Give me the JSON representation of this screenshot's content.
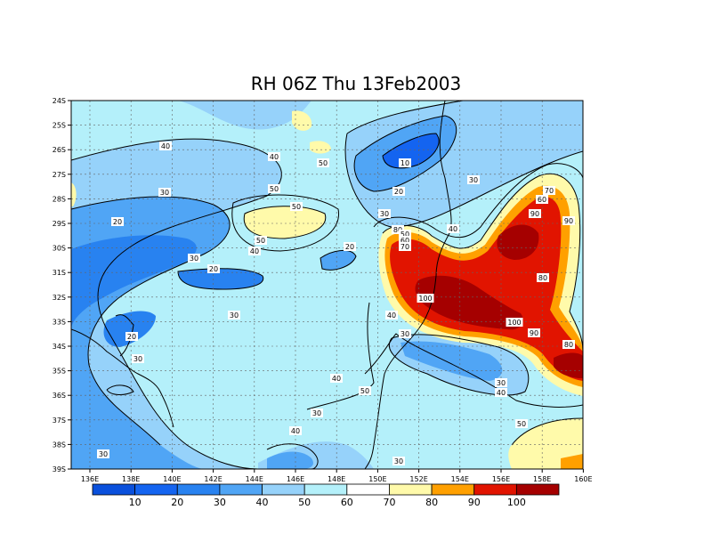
{
  "title": "RH 06Z Thu 13Feb2003",
  "map": {
    "lat_labels": [
      "24S",
      "25S",
      "26S",
      "27S",
      "28S",
      "29S",
      "30S",
      "31S",
      "32S",
      "33S",
      "34S",
      "35S",
      "36S",
      "37S",
      "38S",
      "39S"
    ],
    "lon_labels": [
      "136E",
      "138E",
      "140E",
      "142E",
      "144E",
      "146E",
      "148E",
      "150E",
      "152E",
      "154E",
      "156E",
      "158E",
      "160E"
    ],
    "contour_labels": [
      {
        "text": "40"
      },
      {
        "text": "40"
      },
      {
        "text": "50"
      },
      {
        "text": "10"
      },
      {
        "text": "30"
      },
      {
        "text": "50"
      },
      {
        "text": "30"
      },
      {
        "text": "50"
      },
      {
        "text": "20"
      },
      {
        "text": "30"
      },
      {
        "text": "70"
      },
      {
        "text": "20"
      },
      {
        "text": "60"
      },
      {
        "text": "80"
      },
      {
        "text": "50"
      },
      {
        "text": "40"
      },
      {
        "text": "90"
      },
      {
        "text": "50"
      },
      {
        "text": "40"
      },
      {
        "text": "20"
      },
      {
        "text": "60"
      },
      {
        "text": "30"
      },
      {
        "text": "70"
      },
      {
        "text": "80"
      },
      {
        "text": "90"
      },
      {
        "text": "20"
      },
      {
        "text": "100"
      },
      {
        "text": "30"
      },
      {
        "text": "40"
      },
      {
        "text": "100"
      },
      {
        "text": "90"
      },
      {
        "text": "20"
      },
      {
        "text": "30"
      },
      {
        "text": "80"
      },
      {
        "text": "30"
      },
      {
        "text": "40"
      },
      {
        "text": "40"
      },
      {
        "text": "30"
      },
      {
        "text": "50"
      },
      {
        "text": "40"
      },
      {
        "text": "30"
      },
      {
        "text": "50"
      },
      {
        "text": "30"
      },
      {
        "text": "30"
      }
    ]
  },
  "colorbar": {
    "labels": [
      "10",
      "20",
      "30",
      "40",
      "50",
      "60",
      "70",
      "80",
      "90",
      "100"
    ],
    "colors": [
      "#1464f0",
      "#2882f0",
      "#50a5f5",
      "#96d2fa",
      "#b4f0fa",
      "#ffffff",
      "#fffaaa",
      "#ffa000",
      "#e11400",
      "#a50000"
    ]
  }
}
